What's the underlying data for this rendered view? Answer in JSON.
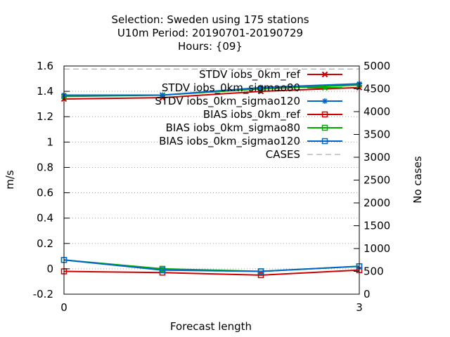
{
  "chart_data": {
    "type": "line",
    "title_lines": [
      "Selection: Sweden using    175 stations",
      "U10m   Period: 20190701-20190729",
      "Hours: {09}"
    ],
    "xlabel": "Forecast length",
    "ylabel": "m/s",
    "y2label": "No cases",
    "xlim": [
      0,
      3
    ],
    "ylim": [
      -0.2,
      1.6
    ],
    "y2lim": [
      0,
      5000
    ],
    "x_ticks": [
      0,
      3
    ],
    "y_ticks": [
      "-0.2",
      "0",
      "0.2",
      "0.4",
      "0.6",
      "0.8",
      "1",
      "1.2",
      "1.4",
      "1.6"
    ],
    "y2_ticks": [
      "0",
      "500",
      "1000",
      "1500",
      "2000",
      "2500",
      "3000",
      "3500",
      "4000",
      "4500",
      "5000"
    ],
    "grid": "dotted horizontal",
    "legend_position": "top-right inside",
    "x": [
      0,
      1,
      2,
      3
    ],
    "series": [
      {
        "name": "STDV iobs_0km_ref",
        "axis": "y",
        "color": "#cc0000",
        "marker": "x",
        "values": [
          1.34,
          1.35,
          1.4,
          1.43
        ]
      },
      {
        "name": "STDV iobs_0km_sigmao80",
        "axis": "y",
        "color": "#00aa00",
        "marker": "x",
        "values": [
          1.36,
          1.37,
          1.42,
          1.45
        ]
      },
      {
        "name": "STDV iobs_0km_sigmao120",
        "axis": "y",
        "color": "#0066cc",
        "marker": "star",
        "values": [
          1.37,
          1.37,
          1.43,
          1.46
        ]
      },
      {
        "name": "BIAS iobs_0km_ref",
        "axis": "y",
        "color": "#cc0000",
        "marker": "square",
        "values": [
          -0.02,
          -0.03,
          -0.05,
          -0.01
        ]
      },
      {
        "name": "BIAS iobs_0km_sigmao80",
        "axis": "y",
        "color": "#00aa00",
        "marker": "square",
        "values": [
          0.07,
          0.0,
          -0.02,
          0.02
        ]
      },
      {
        "name": "BIAS iobs_0km_sigmao120",
        "axis": "y",
        "color": "#0066cc",
        "marker": "square",
        "values": [
          0.07,
          -0.01,
          -0.02,
          0.02
        ]
      },
      {
        "name": "CASES",
        "axis": "y2",
        "color": "#999999",
        "marker": "none",
        "dashed": true,
        "values": [
          4935,
          4935,
          4935,
          4935
        ]
      }
    ]
  }
}
